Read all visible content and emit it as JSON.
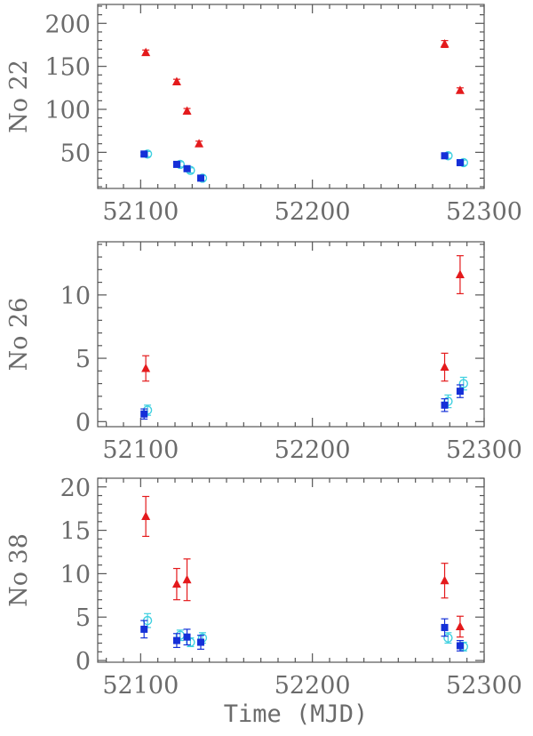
{
  "colors": {
    "frame": "#555555",
    "text": "#6b6b6b",
    "series_red": "#e41a1c",
    "series_blue": "#1530d8",
    "series_cyan": "#3fd0e0"
  },
  "chart_data": [
    {
      "type": "scatter",
      "ylabel": "No 22",
      "xlabel": "",
      "xlim": [
        52075,
        52300
      ],
      "ylim": [
        8,
        222
      ],
      "xticks": [
        52100,
        52200,
        52300
      ],
      "xtick_labels": [
        "52100",
        "52200",
        "52300"
      ],
      "yticks": [
        50,
        100,
        150,
        200
      ],
      "ytick_labels": [
        "50",
        "100",
        "150",
        "200"
      ],
      "grid": false,
      "series": [
        {
          "marker": "triangle",
          "color": "#e41a1c",
          "x": [
            52103,
            52121,
            52127,
            52134,
            52277,
            52286
          ],
          "y": [
            166,
            132,
            98,
            60,
            176,
            122
          ],
          "err": [
            3,
            3,
            3,
            3,
            4,
            3
          ]
        },
        {
          "marker": "square",
          "color": "#1530d8",
          "x": [
            52102,
            52121,
            52127,
            52135,
            52277,
            52286
          ],
          "y": [
            48,
            36,
            31,
            20,
            46,
            38
          ],
          "err": [
            2,
            2,
            2,
            2,
            2,
            2
          ]
        },
        {
          "marker": "open-circle",
          "color": "#3fd0e0",
          "x": [
            52104,
            52123,
            52129,
            52136,
            52279,
            52288
          ],
          "y": [
            48,
            36,
            29,
            20,
            46,
            38
          ],
          "err": [
            3,
            3,
            3,
            3,
            3,
            3
          ]
        }
      ]
    },
    {
      "type": "scatter",
      "ylabel": "No 26",
      "xlabel": "",
      "xlim": [
        52075,
        52300
      ],
      "ylim": [
        -0.4,
        14.2
      ],
      "xticks": [
        52100,
        52200,
        52300
      ],
      "xtick_labels": [
        "52100",
        "52200",
        "52300"
      ],
      "yticks": [
        0,
        5,
        10
      ],
      "ytick_labels": [
        "0",
        "5",
        "10"
      ],
      "grid": false,
      "series": [
        {
          "marker": "triangle",
          "color": "#e41a1c",
          "x": [
            52103,
            52277,
            52286
          ],
          "y": [
            4.2,
            4.3,
            11.6
          ],
          "err": [
            1.0,
            1.1,
            1.5
          ]
        },
        {
          "marker": "square",
          "color": "#1530d8",
          "x": [
            52102,
            52277,
            52286
          ],
          "y": [
            0.6,
            1.3,
            2.4
          ],
          "err": [
            0.4,
            0.5,
            0.5
          ]
        },
        {
          "marker": "open-circle",
          "color": "#3fd0e0",
          "x": [
            52104,
            52279,
            52288
          ],
          "y": [
            0.9,
            1.6,
            3.0
          ],
          "err": [
            0.4,
            0.5,
            0.5
          ]
        }
      ]
    },
    {
      "type": "scatter",
      "ylabel": "No 38",
      "xlabel": "Time (MJD)",
      "xlim": [
        52075,
        52300
      ],
      "ylim": [
        -0.2,
        21.0
      ],
      "xticks": [
        52100,
        52200,
        52300
      ],
      "xtick_labels": [
        "52100",
        "52200",
        "52300"
      ],
      "yticks": [
        0,
        5,
        10,
        15,
        20
      ],
      "ytick_labels": [
        "0",
        "5",
        "10",
        "15",
        "20"
      ],
      "grid": false,
      "series": [
        {
          "marker": "triangle",
          "color": "#e41a1c",
          "x": [
            52103,
            52121,
            52127,
            52277,
            52286
          ],
          "y": [
            16.6,
            8.8,
            9.3,
            9.2,
            3.9
          ],
          "err": [
            2.3,
            1.8,
            2.4,
            2.0,
            1.2
          ]
        },
        {
          "marker": "square",
          "color": "#1530d8",
          "x": [
            52102,
            52121,
            52127,
            52135,
            52277,
            52286
          ],
          "y": [
            3.6,
            2.3,
            2.7,
            2.1,
            3.8,
            1.7
          ],
          "err": [
            1.0,
            0.8,
            0.9,
            0.8,
            1.0,
            0.6
          ]
        },
        {
          "marker": "open-circle",
          "color": "#3fd0e0",
          "x": [
            52104,
            52123,
            52129,
            52136,
            52279,
            52288
          ],
          "y": [
            4.6,
            2.9,
            2.1,
            2.6,
            2.6,
            1.6
          ],
          "err": [
            0.8,
            0.6,
            0.5,
            0.6,
            0.6,
            0.5
          ]
        }
      ]
    }
  ]
}
